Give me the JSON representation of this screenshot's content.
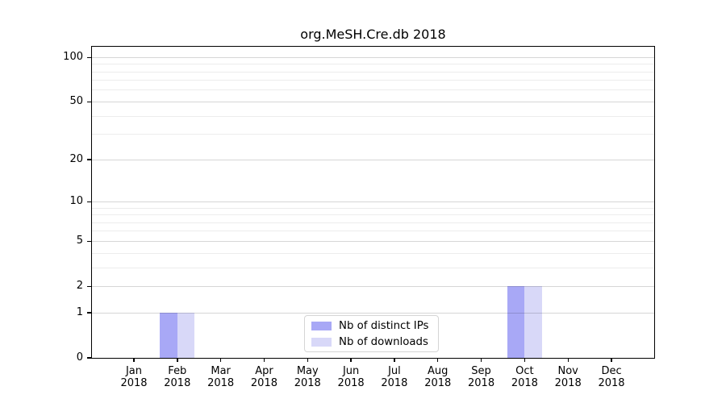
{
  "page": {
    "background_color": "#ffffff",
    "text_color": "#000000"
  },
  "chart_data": {
    "type": "bar",
    "title": "org.MeSH.Cre.db 2018",
    "categories": [
      "Jan",
      "Feb",
      "Mar",
      "Apr",
      "May",
      "Jun",
      "Jul",
      "Aug",
      "Sep",
      "Oct",
      "Nov",
      "Dec"
    ],
    "x_tick_second_line": "2018",
    "series": [
      {
        "name": "Nb of distinct IPs",
        "color": "#a8a8f6",
        "values": [
          0,
          1,
          0,
          0,
          0,
          0,
          0,
          0,
          0,
          2,
          0,
          0
        ]
      },
      {
        "name": "Nb of downloads",
        "color": "#d8d8f8",
        "values": [
          0,
          1,
          0,
          0,
          0,
          0,
          0,
          0,
          0,
          2,
          0,
          0
        ]
      }
    ],
    "xlabel": "",
    "ylabel": "",
    "yscale": "log1p",
    "ylim": [
      0,
      118
    ],
    "yticks": [
      0,
      1,
      2,
      5,
      10,
      20,
      50,
      100
    ],
    "minor_gridlines": [
      3,
      4,
      6,
      7,
      8,
      9,
      30,
      40,
      60,
      70,
      80,
      90
    ],
    "grid": true,
    "legend_position": "lower center inside axes",
    "colors": {
      "major_grid": "#d6d6d6",
      "minor_grid": "#ececec",
      "spine": "#000000",
      "legend_border": "#d5d5d5"
    }
  }
}
